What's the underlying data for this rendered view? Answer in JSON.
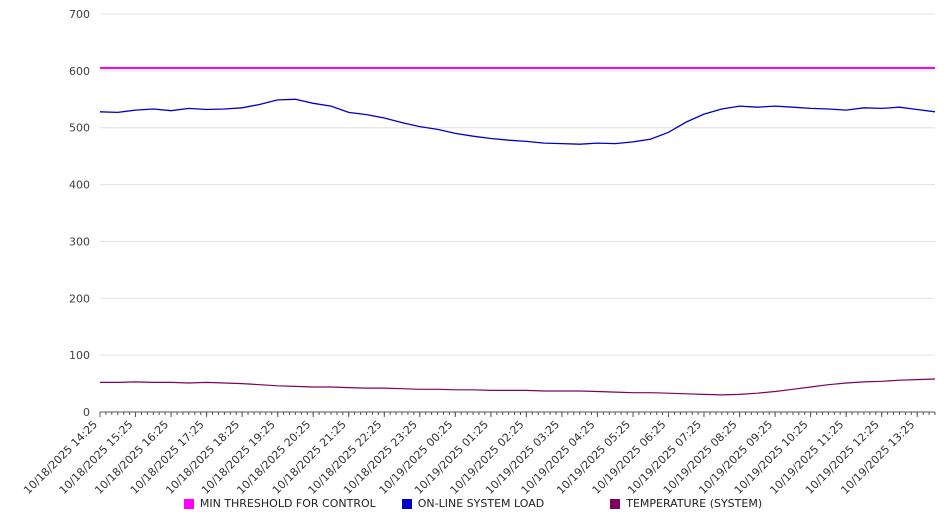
{
  "chart_data": {
    "type": "line",
    "title": "",
    "xlabel": "",
    "ylabel": "",
    "ylim": [
      0,
      700
    ],
    "yticks": [
      0,
      100,
      200,
      300,
      400,
      500,
      600,
      700
    ],
    "grid": true,
    "legend_position": "bottom",
    "x_tick_every": 2,
    "x_tick_labels": [
      "10/18/2025 14:25",
      "10/18/2025 15:25",
      "10/18/2025 16:25",
      "10/18/2025 17:25",
      "10/18/2025 18:25",
      "10/18/2025 19:25",
      "10/18/2025 20:25",
      "10/18/2025 21:25",
      "10/18/2025 22:25",
      "10/18/2025 23:25",
      "10/19/2025 00:25",
      "10/19/2025 01:25",
      "10/19/2025 02:25",
      "10/19/2025 03:25",
      "10/19/2025 04:25",
      "10/19/2025 05:25",
      "10/19/2025 06:25",
      "10/19/2025 07:25",
      "10/19/2025 08:25",
      "10/19/2025 09:25",
      "10/19/2025 10:25",
      "10/19/2025 11:25",
      "10/19/2025 12:25",
      "10/19/2025 13:25"
    ],
    "series": [
      {
        "name": "MIN THRESHOLD FOR CONTROL",
        "color": "#ff00ff",
        "stroke_width": 2,
        "constant": 605
      },
      {
        "name": "ON-LINE SYSTEM LOAD",
        "color": "#0000cc",
        "stroke_width": 1.3,
        "values": [
          528,
          527,
          531,
          533,
          530,
          534,
          532,
          533,
          535,
          541,
          549,
          550,
          543,
          538,
          527,
          523,
          517,
          509,
          502,
          497,
          490,
          485,
          481,
          478,
          476,
          473,
          472,
          471,
          473,
          472,
          475,
          480,
          492,
          510,
          524,
          533,
          538,
          536,
          538,
          536,
          534,
          533,
          531,
          535,
          534,
          536,
          532,
          528
        ]
      },
      {
        "name": "TEMPERATURE (SYSTEM)",
        "color": "#800060",
        "stroke_width": 1.2,
        "values": [
          52,
          52,
          53,
          52,
          52,
          51,
          52,
          51,
          50,
          48,
          46,
          45,
          44,
          44,
          43,
          42,
          42,
          41,
          40,
          40,
          39,
          39,
          38,
          38,
          38,
          37,
          37,
          37,
          36,
          35,
          34,
          34,
          33,
          32,
          31,
          30,
          31,
          33,
          36,
          40,
          44,
          48,
          51,
          53,
          54,
          56,
          57,
          58
        ]
      }
    ],
    "colors": {
      "gridline": "#e0e0e0",
      "axis": "#555555",
      "tick_text": "#404040",
      "background": "#ffffff"
    }
  }
}
